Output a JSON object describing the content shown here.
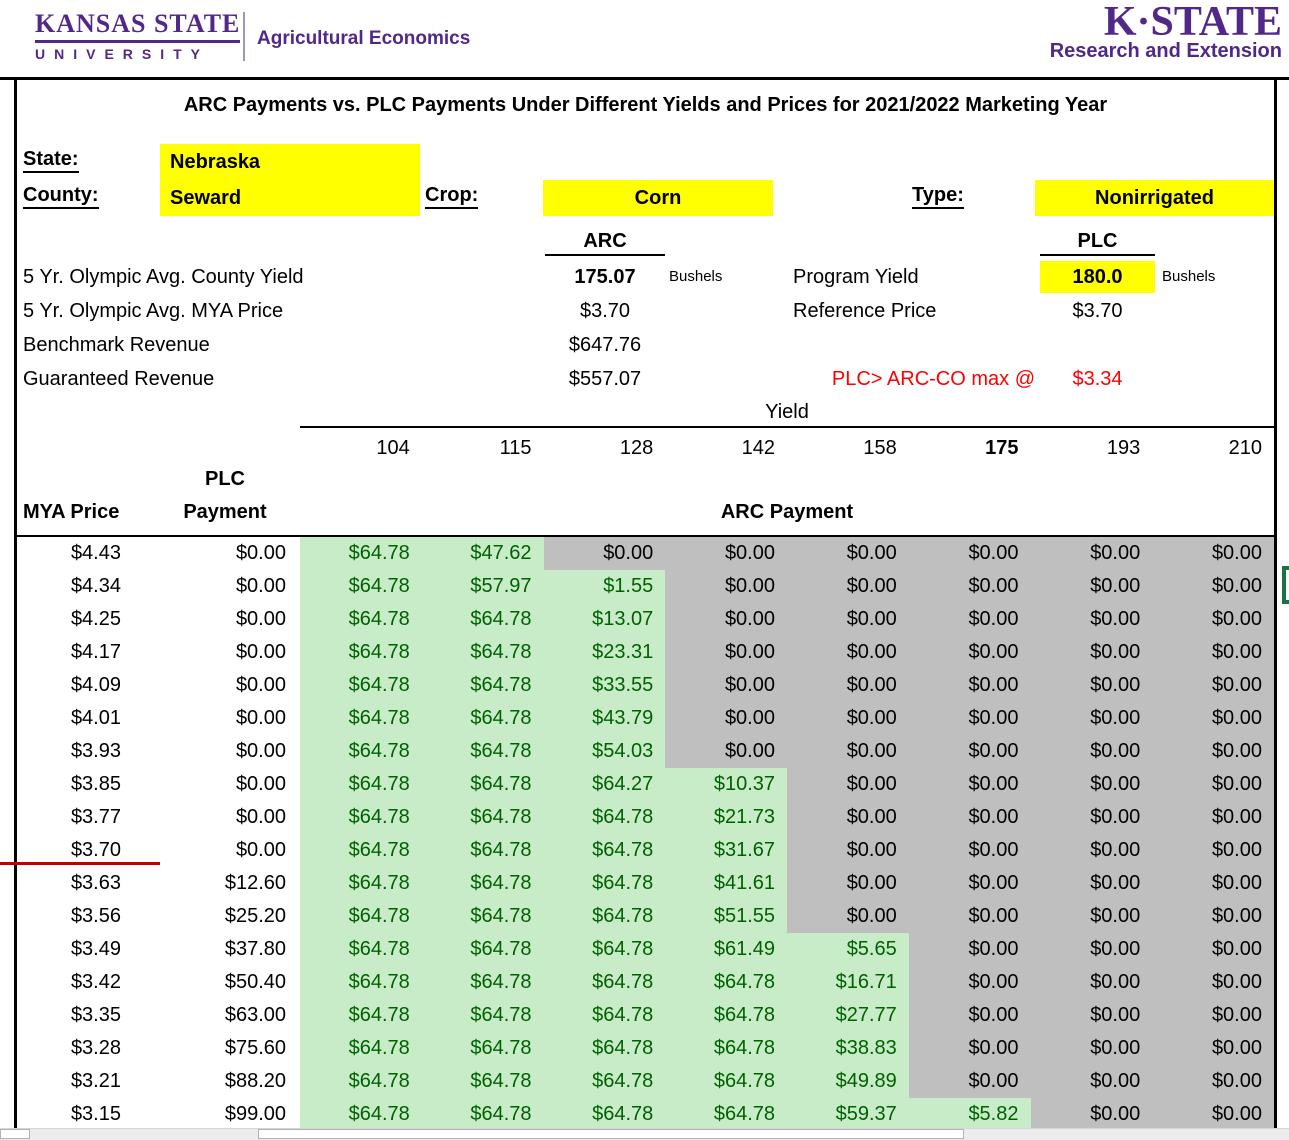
{
  "branding": {
    "ksu_wordmark_line1": "KANSAS STATE",
    "ksu_wordmark_line2": "UNIVERSITY",
    "ksu_department": "Agricultural Economics",
    "kstate_logo": "K·STATE",
    "kstate_logo_sub": "Research and Extension",
    "purple": "#512888"
  },
  "title": "ARC Payments vs. PLC Payments Under Different Yields and Prices for 2021/2022 Marketing Year",
  "form": {
    "state_label": "State:",
    "state_value": "Nebraska",
    "county_label": "County:",
    "county_value": "Seward",
    "crop_label": "Crop:",
    "crop_value": "Corn",
    "type_label": "Type:",
    "type_value": "Nonirrigated"
  },
  "arc_info": {
    "header": "ARC",
    "county_yield_label": "5 Yr. Olympic Avg. County Yield",
    "county_yield_value": "175.07",
    "county_yield_unit": "Bushels",
    "mya_price_label": "5 Yr. Olympic Avg. MYA Price",
    "mya_price_value": "$3.70",
    "benchmark_label": "Benchmark Revenue",
    "benchmark_value": "$647.76",
    "guaranteed_label": "Guaranteed Revenue",
    "guaranteed_value": "$557.07"
  },
  "plc_info": {
    "header": "PLC",
    "program_yield_label": "Program Yield",
    "program_yield_value": "180.0",
    "program_yield_unit": "Bushels",
    "reference_price_label": "Reference Price",
    "reference_price_value": "$3.70",
    "note_label": "PLC> ARC-CO max @",
    "note_value": "$3.34"
  },
  "payment_table": {
    "yield_axis_label": "Yield",
    "yields": [
      "104",
      "115",
      "128",
      "142",
      "158",
      "175",
      "193",
      "210"
    ],
    "bold_yield": "175",
    "mya_price_header": "MYA Price",
    "plc_header_line1": "PLC",
    "plc_header_line2": "Payment",
    "arc_header": "ARC Payment",
    "rows": [
      {
        "price": "$4.43",
        "plc": "$0.00",
        "arc": [
          "$64.78",
          "$47.62",
          "$0.00",
          "$0.00",
          "$0.00",
          "$0.00",
          "$0.00",
          "$0.00"
        ]
      },
      {
        "price": "$4.34",
        "plc": "$0.00",
        "arc": [
          "$64.78",
          "$57.97",
          "$1.55",
          "$0.00",
          "$0.00",
          "$0.00",
          "$0.00",
          "$0.00"
        ]
      },
      {
        "price": "$4.25",
        "plc": "$0.00",
        "arc": [
          "$64.78",
          "$64.78",
          "$13.07",
          "$0.00",
          "$0.00",
          "$0.00",
          "$0.00",
          "$0.00"
        ]
      },
      {
        "price": "$4.17",
        "plc": "$0.00",
        "arc": [
          "$64.78",
          "$64.78",
          "$23.31",
          "$0.00",
          "$0.00",
          "$0.00",
          "$0.00",
          "$0.00"
        ]
      },
      {
        "price": "$4.09",
        "plc": "$0.00",
        "arc": [
          "$64.78",
          "$64.78",
          "$33.55",
          "$0.00",
          "$0.00",
          "$0.00",
          "$0.00",
          "$0.00"
        ]
      },
      {
        "price": "$4.01",
        "plc": "$0.00",
        "arc": [
          "$64.78",
          "$64.78",
          "$43.79",
          "$0.00",
          "$0.00",
          "$0.00",
          "$0.00",
          "$0.00"
        ]
      },
      {
        "price": "$3.93",
        "plc": "$0.00",
        "arc": [
          "$64.78",
          "$64.78",
          "$54.03",
          "$0.00",
          "$0.00",
          "$0.00",
          "$0.00",
          "$0.00"
        ]
      },
      {
        "price": "$3.85",
        "plc": "$0.00",
        "arc": [
          "$64.78",
          "$64.78",
          "$64.27",
          "$10.37",
          "$0.00",
          "$0.00",
          "$0.00",
          "$0.00"
        ]
      },
      {
        "price": "$3.77",
        "plc": "$0.00",
        "arc": [
          "$64.78",
          "$64.78",
          "$64.78",
          "$21.73",
          "$0.00",
          "$0.00",
          "$0.00",
          "$0.00"
        ]
      },
      {
        "price": "$3.70",
        "plc": "$0.00",
        "arc": [
          "$64.78",
          "$64.78",
          "$64.78",
          "$31.67",
          "$0.00",
          "$0.00",
          "$0.00",
          "$0.00"
        ]
      },
      {
        "price": "$3.63",
        "plc": "$12.60",
        "arc": [
          "$64.78",
          "$64.78",
          "$64.78",
          "$41.61",
          "$0.00",
          "$0.00",
          "$0.00",
          "$0.00"
        ]
      },
      {
        "price": "$3.56",
        "plc": "$25.20",
        "arc": [
          "$64.78",
          "$64.78",
          "$64.78",
          "$51.55",
          "$0.00",
          "$0.00",
          "$0.00",
          "$0.00"
        ]
      },
      {
        "price": "$3.49",
        "plc": "$37.80",
        "arc": [
          "$64.78",
          "$64.78",
          "$64.78",
          "$61.49",
          "$5.65",
          "$0.00",
          "$0.00",
          "$0.00"
        ]
      },
      {
        "price": "$3.42",
        "plc": "$50.40",
        "arc": [
          "$64.78",
          "$64.78",
          "$64.78",
          "$64.78",
          "$16.71",
          "$0.00",
          "$0.00",
          "$0.00"
        ]
      },
      {
        "price": "$3.35",
        "plc": "$63.00",
        "arc": [
          "$64.78",
          "$64.78",
          "$64.78",
          "$64.78",
          "$27.77",
          "$0.00",
          "$0.00",
          "$0.00"
        ]
      },
      {
        "price": "$3.28",
        "plc": "$75.60",
        "arc": [
          "$64.78",
          "$64.78",
          "$64.78",
          "$64.78",
          "$38.83",
          "$0.00",
          "$0.00",
          "$0.00"
        ]
      },
      {
        "price": "$3.21",
        "plc": "$88.20",
        "arc": [
          "$64.78",
          "$64.78",
          "$64.78",
          "$64.78",
          "$49.89",
          "$0.00",
          "$0.00",
          "$0.00"
        ]
      },
      {
        "price": "$3.15",
        "plc": "$99.00",
        "arc": [
          "$64.78",
          "$64.78",
          "$64.78",
          "$64.78",
          "$59.37",
          "$5.82",
          "$0.00",
          "$0.00"
        ]
      }
    ]
  },
  "colors": {
    "highlight_yellow": "#ffff00",
    "positive_cell_bg": "#c8ecc8",
    "positive_cell_text": "#006100",
    "zero_cell_bg": "#bfbfbf",
    "alert_red": "#ff0000",
    "reference_line_red": "#c00000",
    "selection_green": "#1e7145",
    "brand_purple": "#512888"
  }
}
